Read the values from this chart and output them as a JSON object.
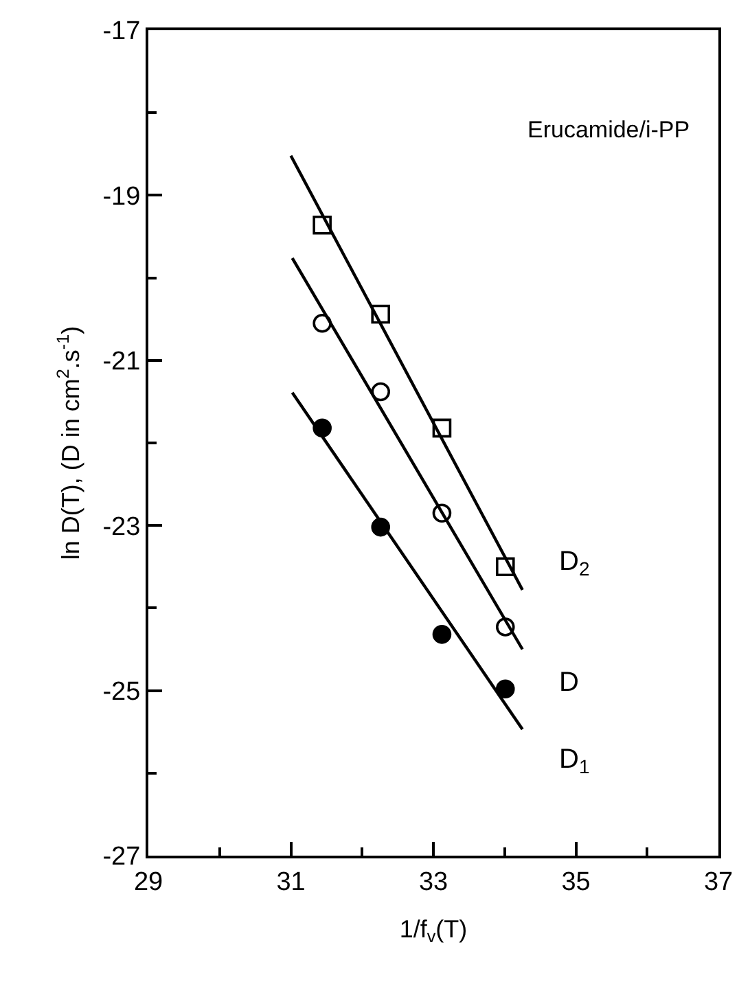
{
  "chart_data": {
    "type": "scatter",
    "xlabel": "1/f$_{v}$(T)",
    "ylabel": "ln D(T), (D in cm$^{2}$.s$^{-1}$)",
    "xlim": [
      29,
      37
    ],
    "ylim": [
      -27,
      -17
    ],
    "xticks": [
      29,
      {
        "value": 30,
        "label": null
      },
      31,
      {
        "value": 32,
        "label": null
      },
      33,
      {
        "value": 34,
        "label": null
      },
      35,
      {
        "value": 36,
        "label": null
      },
      37
    ],
    "yticks": [
      -27,
      {
        "value": -26,
        "label": null
      },
      -25,
      {
        "value": -24,
        "label": null
      },
      -23,
      {
        "value": -22,
        "label": null
      },
      -21,
      {
        "value": -20,
        "label": null
      },
      -19,
      {
        "value": -18,
        "label": null
      },
      -17
    ],
    "series": [
      {
        "marker": "square",
        "color": "#ffffff",
        "x": [
          31.44,
          32.26,
          33.12,
          34.01
        ],
        "values": [
          -19.36,
          -20.44,
          -21.82,
          -23.5
        ]
      },
      {
        "marker": "circle",
        "color": "#ffffff",
        "x": [
          31.44,
          32.26,
          33.12,
          34.01
        ],
        "values": [
          -20.55,
          -21.38,
          -22.85,
          -24.23
        ]
      },
      {
        "marker": "circle",
        "color": "#000000",
        "x": [
          31.44,
          32.26,
          33.12,
          34.01
        ],
        "values": [
          -21.82,
          -23.02,
          -24.32,
          -24.98
        ]
      },
      {
        "type": "line",
        "marker": "none",
        "line_style": "solid",
        "color": "#000000",
        "x": [
          31.0,
          34.25
        ],
        "values": [
          -18.52,
          -23.78
        ]
      },
      {
        "type": "line",
        "marker": "none",
        "line_style": "solid",
        "color": "#000000",
        "x": [
          31.02,
          34.25
        ],
        "values": [
          -19.76,
          -24.5
        ]
      },
      {
        "type": "line",
        "marker": "none",
        "line_style": "solid",
        "color": "#000000",
        "x": [
          31.02,
          34.25
        ],
        "values": [
          -21.39,
          -25.47
        ]
      }
    ],
    "annotations": [
      "Erucamide/i-PP",
      "D$_{2}$",
      "D",
      "D$_{1}$"
    ]
  }
}
